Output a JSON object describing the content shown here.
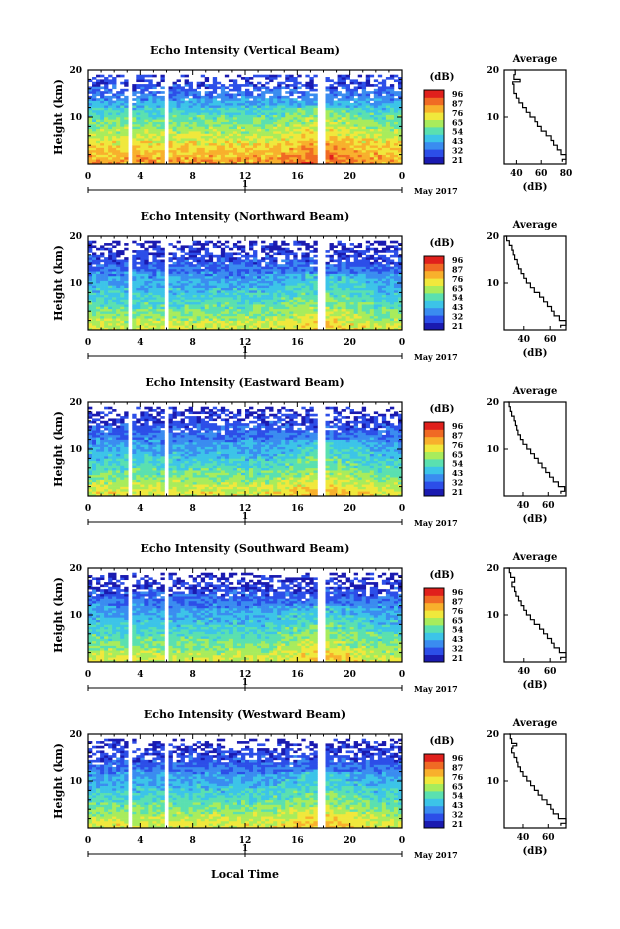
{
  "chart_data": {
    "type": "heatmap",
    "figure": {
      "xlabel": "Local Time",
      "time_ticks": [
        "0",
        "4",
        "8",
        "12",
        "16",
        "20",
        "0"
      ],
      "time_range_hours": [
        0,
        24
      ],
      "date_marker": "1",
      "month_label": "May 2017",
      "height_ticks": [
        "20",
        "10"
      ],
      "height_range_km": [
        0,
        20
      ],
      "ylabel": "Height (km)",
      "colorbar_unit": "(dB)",
      "colorbar_ticks": [
        "96",
        "87",
        "76",
        "65",
        "54",
        "43",
        "32",
        "21"
      ],
      "colormap": [
        "#1a1ab0",
        "#2c4ee8",
        "#3a8cf0",
        "#3cc4e8",
        "#5ae0b0",
        "#a8ec5c",
        "#f0e83c",
        "#f8b02c",
        "#f06a24",
        "#e0201c"
      ],
      "missing_data_hours": [
        [
          3.1,
          3.5
        ],
        [
          5.8,
          6.1
        ],
        [
          17.5,
          18.0
        ]
      ],
      "average_title": "Average",
      "average_xlabel": "(dB)"
    },
    "panels": [
      {
        "title": "Echo Intensity (Vertical Beam)",
        "colorbar_ticks": [
          "96",
          "87",
          "76",
          "65",
          "54",
          "43",
          "32",
          "21"
        ],
        "intensity_profile_db": [
          [
            1,
            78
          ],
          [
            3,
            74
          ],
          [
            5,
            68
          ],
          [
            8,
            60
          ],
          [
            11,
            52
          ],
          [
            14,
            40
          ],
          [
            17,
            30
          ],
          [
            18.5,
            30
          ],
          [
            20,
            26
          ]
        ],
        "average_xticks": [
          "40",
          "60",
          "80"
        ],
        "average_xrange": [
          30,
          80
        ],
        "average_profile": [
          [
            0.5,
            77
          ],
          [
            1,
            80
          ],
          [
            2,
            76
          ],
          [
            3,
            73
          ],
          [
            4,
            70
          ],
          [
            5,
            68
          ],
          [
            6,
            64
          ],
          [
            7,
            60
          ],
          [
            8,
            57
          ],
          [
            9,
            55
          ],
          [
            10,
            51
          ],
          [
            11,
            48
          ],
          [
            12,
            45
          ],
          [
            13,
            42
          ],
          [
            14,
            40
          ],
          [
            15,
            38
          ],
          [
            16,
            38
          ],
          [
            17,
            37
          ],
          [
            17.5,
            43
          ],
          [
            18,
            38
          ],
          [
            19,
            39
          ],
          [
            20,
            38
          ]
        ]
      },
      {
        "title": "Echo Intensity (Northward Beam)",
        "colorbar_ticks": [
          "96",
          "87",
          "76",
          "65",
          "54",
          "43",
          "32",
          "21"
        ],
        "intensity_profile_db": [
          [
            1,
            66
          ],
          [
            3,
            60
          ],
          [
            5,
            55
          ],
          [
            8,
            48
          ],
          [
            11,
            42
          ],
          [
            14,
            34
          ],
          [
            17,
            28
          ],
          [
            18.5,
            25
          ],
          [
            20,
            22
          ]
        ],
        "average_xticks": [
          "40",
          "60"
        ],
        "average_xrange": [
          25,
          72
        ],
        "average_profile": [
          [
            0.5,
            68
          ],
          [
            1,
            72
          ],
          [
            2,
            67
          ],
          [
            3,
            63
          ],
          [
            4,
            61
          ],
          [
            5,
            58
          ],
          [
            6,
            55
          ],
          [
            7,
            52
          ],
          [
            8,
            48
          ],
          [
            9,
            45
          ],
          [
            10,
            42
          ],
          [
            11,
            40
          ],
          [
            12,
            38
          ],
          [
            13,
            36
          ],
          [
            14,
            35
          ],
          [
            15,
            33
          ],
          [
            16,
            32
          ],
          [
            17,
            31
          ],
          [
            18,
            29
          ],
          [
            19,
            27
          ],
          [
            20,
            26
          ]
        ]
      },
      {
        "title": "Echo Intensity (Eastward Beam)",
        "colorbar_ticks": [
          "96",
          "87",
          "76",
          "65",
          "54",
          "43",
          "32",
          "21"
        ],
        "intensity_profile_db": [
          [
            1,
            68
          ],
          [
            3,
            62
          ],
          [
            5,
            56
          ],
          [
            8,
            48
          ],
          [
            11,
            42
          ],
          [
            14,
            34
          ],
          [
            17,
            28
          ],
          [
            18.5,
            25
          ],
          [
            20,
            22
          ]
        ],
        "average_xticks": [
          "40",
          "60"
        ],
        "average_xrange": [
          25,
          74
        ],
        "average_profile": [
          [
            0.5,
            70
          ],
          [
            1,
            73
          ],
          [
            2,
            68
          ],
          [
            3,
            64
          ],
          [
            4,
            61
          ],
          [
            5,
            58
          ],
          [
            6,
            55
          ],
          [
            7,
            52
          ],
          [
            8,
            49
          ],
          [
            9,
            46
          ],
          [
            10,
            43
          ],
          [
            11,
            40
          ],
          [
            12,
            38
          ],
          [
            13,
            36
          ],
          [
            14,
            35
          ],
          [
            15,
            34
          ],
          [
            16,
            33
          ],
          [
            17,
            31
          ],
          [
            18,
            30
          ],
          [
            19,
            29
          ],
          [
            20,
            28
          ]
        ]
      },
      {
        "title": "Echo Intensity (Southward Beam)",
        "colorbar_ticks": [
          "96",
          "87",
          "76",
          "65",
          "54",
          "43",
          "32",
          "21"
        ],
        "intensity_profile_db": [
          [
            1,
            66
          ],
          [
            3,
            60
          ],
          [
            5,
            55
          ],
          [
            8,
            48
          ],
          [
            11,
            42
          ],
          [
            14,
            34
          ],
          [
            17,
            28
          ],
          [
            18.5,
            25
          ],
          [
            20,
            22
          ]
        ],
        "average_xticks": [
          "40",
          "60"
        ],
        "average_xrange": [
          25,
          72
        ],
        "average_profile": [
          [
            0.5,
            68
          ],
          [
            1,
            72
          ],
          [
            2,
            67
          ],
          [
            3,
            63
          ],
          [
            4,
            61
          ],
          [
            5,
            58
          ],
          [
            6,
            55
          ],
          [
            7,
            52
          ],
          [
            8,
            48
          ],
          [
            9,
            45
          ],
          [
            10,
            42
          ],
          [
            11,
            40
          ],
          [
            12,
            38
          ],
          [
            13,
            36
          ],
          [
            14,
            34
          ],
          [
            15,
            33
          ],
          [
            16,
            31
          ],
          [
            17,
            33
          ],
          [
            18,
            30
          ],
          [
            19,
            29
          ],
          [
            20,
            27
          ]
        ]
      },
      {
        "title": "Echo Intensity (Westward Beam)",
        "colorbar_ticks": [
          "96",
          "87",
          "76",
          "65",
          "54",
          "43",
          "32",
          "21"
        ],
        "intensity_profile_db": [
          [
            1,
            68
          ],
          [
            3,
            62
          ],
          [
            5,
            56
          ],
          [
            8,
            48
          ],
          [
            11,
            42
          ],
          [
            14,
            34
          ],
          [
            17,
            28
          ],
          [
            18.5,
            25
          ],
          [
            20,
            22
          ]
        ],
        "average_xticks": [
          "40",
          "60"
        ],
        "average_xrange": [
          25,
          74
        ],
        "average_profile": [
          [
            0.5,
            70
          ],
          [
            1,
            74
          ],
          [
            2,
            68
          ],
          [
            3,
            64
          ],
          [
            4,
            62
          ],
          [
            5,
            59
          ],
          [
            6,
            55
          ],
          [
            7,
            52
          ],
          [
            8,
            49
          ],
          [
            9,
            46
          ],
          [
            10,
            43
          ],
          [
            11,
            40
          ],
          [
            12,
            38
          ],
          [
            13,
            36
          ],
          [
            14,
            35
          ],
          [
            15,
            33
          ],
          [
            16,
            31
          ],
          [
            17,
            32
          ],
          [
            17.5,
            35
          ],
          [
            18,
            31
          ],
          [
            19,
            30
          ],
          [
            20,
            29
          ]
        ]
      }
    ]
  }
}
